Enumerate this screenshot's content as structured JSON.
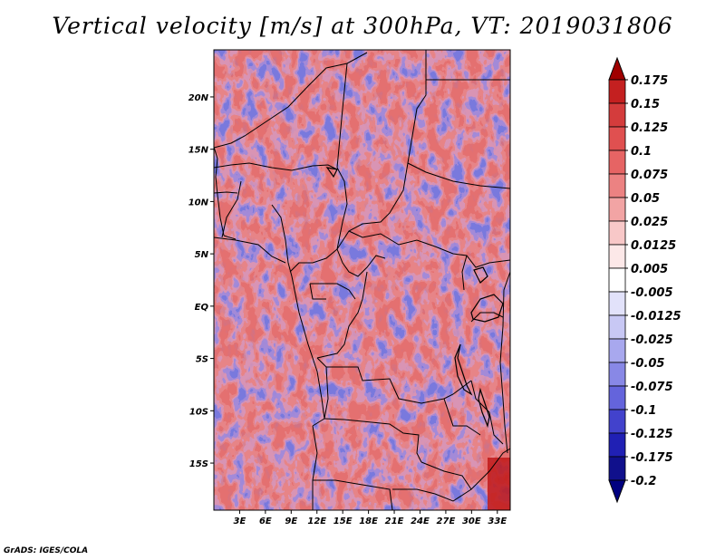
{
  "title": "Vertical velocity [m/s] at 300hPa, VT: 2019031806",
  "credit": "GrADS: IGES/COLA",
  "map": {
    "lon_ticks": [
      "3E",
      "6E",
      "9E",
      "12E",
      "15E",
      "18E",
      "21E",
      "24E",
      "27E",
      "30E",
      "33E"
    ],
    "lat_ticks": [
      "20N",
      "15N",
      "10N",
      "5N",
      "EQ",
      "5S",
      "10S",
      "15S"
    ],
    "lon_range": [
      0,
      34.5
    ],
    "lat_range": [
      -19.5,
      24.5
    ],
    "lon_tick_values": [
      3,
      6,
      9,
      12,
      15,
      18,
      21,
      24,
      27,
      30,
      33
    ],
    "lat_tick_values": [
      20,
      15,
      10,
      5,
      0,
      -5,
      -10,
      -15
    ]
  },
  "colorbar": {
    "labels": [
      "0.175",
      "0.15",
      "0.125",
      "0.1",
      "0.075",
      "0.05",
      "0.025",
      "0.0125",
      "0.005",
      "-0.005",
      "-0.0125",
      "-0.025",
      "-0.05",
      "-0.075",
      "-0.1",
      "-0.125",
      "-0.175",
      "-0.2"
    ],
    "colors": [
      "#a00000",
      "#c42020",
      "#d43c3c",
      "#e05050",
      "#e66464",
      "#ec8282",
      "#f2a4a4",
      "#f8c8c8",
      "#fce8e8",
      "#ffffff",
      "#e2e2fa",
      "#c8c8f4",
      "#a8a8ee",
      "#8888e6",
      "#6464dc",
      "#4242cc",
      "#2020b4",
      "#10108c",
      "#000080"
    ]
  },
  "colors": {
    "positive": "#e8383c",
    "negative": "#3c3ccc",
    "background": "#ffffff",
    "border": "#000000"
  }
}
